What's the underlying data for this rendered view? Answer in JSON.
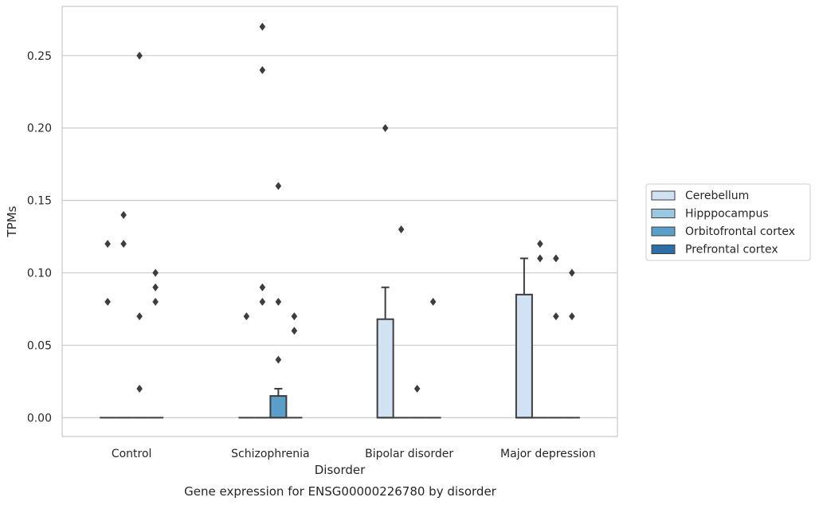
{
  "chart_data": {
    "type": "box",
    "title": "",
    "caption": "Gene expression for ENSG00000226780 by disorder",
    "xlabel": "Disorder",
    "ylabel": "TPMs",
    "ylim": [
      -0.013,
      0.284
    ],
    "yticks": [
      "0.00",
      "0.05",
      "0.10",
      "0.15",
      "0.20",
      "0.25"
    ],
    "ytick_values": [
      0.0,
      0.05,
      0.1,
      0.15,
      0.2,
      0.25
    ],
    "grid": true,
    "legend_position": "right",
    "categories": [
      "Control",
      "Schizophrenia",
      "Bipolar disorder",
      "Major depression"
    ],
    "series": [
      {
        "name": "Cerebellum",
        "color": "#d1e2f2",
        "boxes": [
          {
            "q1": 0,
            "median": 0,
            "q3": 0,
            "whisker_low": 0,
            "whisker_high": 0,
            "outliers": [
              0.08,
              0.12
            ]
          },
          {
            "q1": 0,
            "median": 0,
            "q3": 0,
            "whisker_low": 0,
            "whisker_high": 0,
            "outliers": [
              0.07
            ]
          },
          {
            "q1": 0,
            "median": 0,
            "q3": 0.068,
            "whisker_low": 0,
            "whisker_high": 0.09,
            "outliers": [
              0.2
            ]
          },
          {
            "q1": 0,
            "median": 0,
            "q3": 0.085,
            "whisker_low": 0,
            "whisker_high": 0.11,
            "outliers": []
          }
        ]
      },
      {
        "name": "Hipppocampus",
        "color": "#9ac8e0",
        "boxes": [
          {
            "q1": 0,
            "median": 0,
            "q3": 0,
            "whisker_low": 0,
            "whisker_high": 0,
            "outliers": [
              0.12,
              0.14
            ]
          },
          {
            "q1": 0,
            "median": 0,
            "q3": 0,
            "whisker_low": 0,
            "whisker_high": 0,
            "outliers": [
              0.08,
              0.09,
              0.24,
              0.27
            ]
          },
          {
            "q1": 0,
            "median": 0,
            "q3": 0,
            "whisker_low": 0,
            "whisker_high": 0,
            "outliers": [
              0.13
            ]
          },
          {
            "q1": 0,
            "median": 0,
            "q3": 0,
            "whisker_low": 0,
            "whisker_high": 0,
            "outliers": [
              0.11,
              0.12
            ]
          }
        ]
      },
      {
        "name": "Orbitofrontal cortex",
        "color": "#5a9ec9",
        "boxes": [
          {
            "q1": 0,
            "median": 0,
            "q3": 0,
            "whisker_low": 0,
            "whisker_high": 0,
            "outliers": [
              0.02,
              0.07,
              0.25
            ]
          },
          {
            "q1": 0,
            "median": 0,
            "q3": 0.015,
            "whisker_low": 0,
            "whisker_high": 0.02,
            "outliers": [
              0.04,
              0.08,
              0.16
            ]
          },
          {
            "q1": 0,
            "median": 0,
            "q3": 0,
            "whisker_low": 0,
            "whisker_high": 0,
            "outliers": [
              0.02
            ]
          },
          {
            "q1": 0,
            "median": 0,
            "q3": 0,
            "whisker_low": 0,
            "whisker_high": 0,
            "outliers": [
              0.07,
              0.11
            ]
          }
        ]
      },
      {
        "name": "Prefrontal cortex",
        "color": "#2d6ea6",
        "boxes": [
          {
            "q1": 0,
            "median": 0,
            "q3": 0,
            "whisker_low": 0,
            "whisker_high": 0,
            "outliers": [
              0.08,
              0.09,
              0.1
            ]
          },
          {
            "q1": 0,
            "median": 0,
            "q3": 0,
            "whisker_low": 0,
            "whisker_high": 0,
            "outliers": [
              0.06,
              0.07
            ]
          },
          {
            "q1": 0,
            "median": 0,
            "q3": 0,
            "whisker_low": 0,
            "whisker_high": 0,
            "outliers": [
              0.08
            ]
          },
          {
            "q1": 0,
            "median": 0,
            "q3": 0,
            "whisker_low": 0,
            "whisker_high": 0,
            "outliers": [
              0.07,
              0.1
            ]
          }
        ]
      }
    ]
  }
}
